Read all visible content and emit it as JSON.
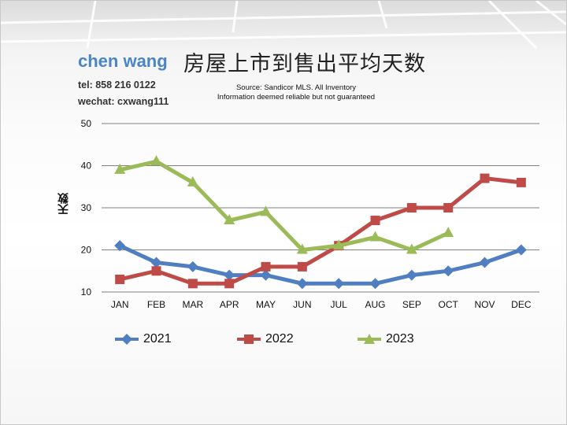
{
  "header": {
    "author": "chen wang",
    "tel": "tel: 858 216 0122",
    "wechat": "wechat: cxwang111",
    "title": "房屋上市到售出平均天数",
    "source_line1": "Source: Sandicor MLS. All Inventory",
    "source_line2": "Information deemed reliable but not guaranteed"
  },
  "chart_data": {
    "type": "line",
    "title": "房屋上市到售出平均天数",
    "xlabel": "",
    "ylabel": "天数",
    "ylim": [
      10,
      50
    ],
    "yticks": [
      10,
      20,
      30,
      40,
      50
    ],
    "grid": true,
    "legend_position": "bottom",
    "categories": [
      "JAN",
      "FEB",
      "MAR",
      "APR",
      "MAY",
      "JUN",
      "JUL",
      "AUG",
      "SEP",
      "OCT",
      "NOV",
      "DEC"
    ],
    "series": [
      {
        "name": "2021",
        "marker": "diamond",
        "color": "#4f7ec1",
        "values": [
          21,
          17,
          16,
          14,
          14,
          12,
          12,
          12,
          14,
          15,
          17,
          20
        ]
      },
      {
        "name": "2022",
        "marker": "square",
        "color": "#be4b48",
        "values": [
          13,
          15,
          12,
          12,
          16,
          16,
          21,
          27,
          30,
          30,
          37,
          36
        ]
      },
      {
        "name": "2023",
        "marker": "triangle",
        "color": "#9bbb59",
        "values": [
          39,
          41,
          36,
          27,
          29,
          20,
          21,
          23,
          20,
          24,
          null,
          null
        ]
      }
    ]
  }
}
